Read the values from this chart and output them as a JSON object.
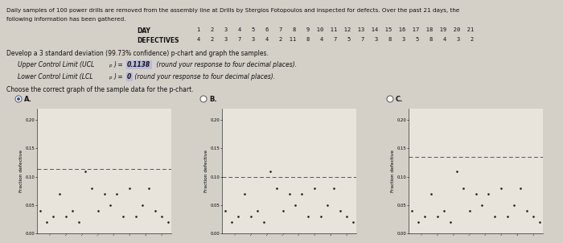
{
  "days": [
    1,
    2,
    3,
    4,
    5,
    6,
    7,
    8,
    9,
    10,
    11,
    12,
    13,
    14,
    15,
    16,
    17,
    18,
    19,
    20,
    21
  ],
  "defectives": [
    4,
    2,
    3,
    7,
    3,
    4,
    2,
    11,
    8,
    4,
    7,
    5,
    7,
    3,
    8,
    3,
    5,
    8,
    4,
    3,
    2
  ],
  "n": 100,
  "UCL_A": 0.1138,
  "LCL_A": 0.0,
  "UCL_B": 0.1,
  "LCL_B": 0.0,
  "UCL_C": 0.135,
  "LCL_C": 0.0,
  "bg_color": "#d4d0c8",
  "plot_bg": "#e8e4dc",
  "dot_color": "#1a1a1a",
  "selected_A": true,
  "selected_B": false,
  "selected_C": false,
  "yticks": [
    0.0,
    0.05,
    0.1,
    0.15,
    0.2
  ],
  "ylim": [
    0.0,
    0.22
  ]
}
